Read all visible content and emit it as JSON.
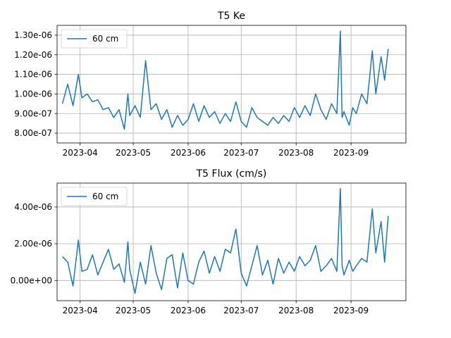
{
  "chart_data": [
    {
      "type": "line",
      "title": "T5 Ke",
      "xlabel": "",
      "ylabel": "",
      "grid": true,
      "legend_placement": "top-left",
      "x_ticks": [
        "2023-04",
        "2023-05",
        "2023-06",
        "2023-07",
        "2023-08",
        "2023-09"
      ],
      "y_ticks": [
        "8.00e-07",
        "9.00e-07",
        "1.00e-06",
        "1.10e-06",
        "1.20e-06",
        "1.30e-06"
      ],
      "y_tick_values": [
        8e-07,
        9e-07,
        1e-06,
        1.1e-06,
        1.2e-06,
        1.3e-06
      ],
      "xlim": [
        "2023-03-19",
        "2023-10-02"
      ],
      "ylim": [
        7.5e-07,
        1.35e-06
      ],
      "series": [
        {
          "name": "60 cm",
          "color": "#1f77b4",
          "x": [
            "2023-03-22",
            "2023-03-25",
            "2023-03-28",
            "2023-03-31",
            "2023-04-02",
            "2023-04-05",
            "2023-04-08",
            "2023-04-11",
            "2023-04-14",
            "2023-04-17",
            "2023-04-20",
            "2023-04-23",
            "2023-04-26",
            "2023-04-28",
            "2023-04-29",
            "2023-05-02",
            "2023-05-05",
            "2023-05-08",
            "2023-05-11",
            "2023-05-14",
            "2023-05-17",
            "2023-05-20",
            "2023-05-23",
            "2023-05-26",
            "2023-05-29",
            "2023-06-01",
            "2023-06-04",
            "2023-06-07",
            "2023-06-10",
            "2023-06-13",
            "2023-06-16",
            "2023-06-19",
            "2023-06-22",
            "2023-06-25",
            "2023-06-28",
            "2023-07-01",
            "2023-07-04",
            "2023-07-07",
            "2023-07-10",
            "2023-07-13",
            "2023-07-16",
            "2023-07-19",
            "2023-07-22",
            "2023-07-25",
            "2023-07-28",
            "2023-07-31",
            "2023-08-03",
            "2023-08-06",
            "2023-08-09",
            "2023-08-12",
            "2023-08-15",
            "2023-08-18",
            "2023-08-21",
            "2023-08-24",
            "2023-08-26",
            "2023-08-27",
            "2023-08-28",
            "2023-08-31",
            "2023-09-02",
            "2023-09-04",
            "2023-09-07",
            "2023-09-10",
            "2023-09-13",
            "2023-09-15",
            "2023-09-18",
            "2023-09-20",
            "2023-09-22"
          ],
          "values": [
            9.5e-07,
            1.05e-06,
            9.4e-07,
            1.1e-06,
            9.8e-07,
            1e-06,
            9.6e-07,
            9.7e-07,
            9.2e-07,
            9.3e-07,
            8.8e-07,
            9.2e-07,
            8.2e-07,
            1e-06,
            8.9e-07,
            9.4e-07,
            8.8e-07,
            1.17e-06,
            9.2e-07,
            9.5e-07,
            8.7e-07,
            9.2e-07,
            8.3e-07,
            8.9e-07,
            8.4e-07,
            8.7e-07,
            9.5e-07,
            8.6e-07,
            9.4e-07,
            8.8e-07,
            9.1e-07,
            8.5e-07,
            9e-07,
            8.6e-07,
            9.6e-07,
            8.6e-07,
            8.3e-07,
            9.3e-07,
            8.8e-07,
            8.6e-07,
            8.4e-07,
            8.8e-07,
            8.5e-07,
            8.9e-07,
            8.6e-07,
            9.3e-07,
            8.8e-07,
            9.4e-07,
            8.9e-07,
            1e-06,
            9.2e-07,
            8.7e-07,
            9.5e-07,
            9e-07,
            1.32e-06,
            8.8e-07,
            9.1e-07,
            8.4e-07,
            9.3e-07,
            9e-07,
            1e-06,
            9.5e-07,
            1.22e-06,
            1e-06,
            1.19e-06,
            1.07e-06,
            1.23e-06
          ]
        }
      ]
    },
    {
      "type": "line",
      "title": "T5 Flux (cm/s)",
      "xlabel": "",
      "ylabel": "",
      "grid": true,
      "legend_placement": "top-left",
      "x_ticks": [
        "2023-04",
        "2023-05",
        "2023-06",
        "2023-07",
        "2023-08",
        "2023-09"
      ],
      "y_ticks": [
        "0.00e+00",
        "2.00e-06",
        "4.00e-06"
      ],
      "y_tick_values": [
        0.0,
        2e-06,
        4e-06
      ],
      "xlim": [
        "2023-03-19",
        "2023-10-02"
      ],
      "ylim": [
        -1.1e-06,
        5.3e-06
      ],
      "series": [
        {
          "name": "60 cm",
          "color": "#1f77b4",
          "x": [
            "2023-03-22",
            "2023-03-25",
            "2023-03-28",
            "2023-03-31",
            "2023-04-02",
            "2023-04-05",
            "2023-04-08",
            "2023-04-11",
            "2023-04-14",
            "2023-04-17",
            "2023-04-20",
            "2023-04-23",
            "2023-04-26",
            "2023-04-28",
            "2023-04-29",
            "2023-05-02",
            "2023-05-05",
            "2023-05-08",
            "2023-05-11",
            "2023-05-14",
            "2023-05-17",
            "2023-05-20",
            "2023-05-23",
            "2023-05-26",
            "2023-05-29",
            "2023-06-01",
            "2023-06-04",
            "2023-06-07",
            "2023-06-10",
            "2023-06-13",
            "2023-06-16",
            "2023-06-19",
            "2023-06-22",
            "2023-06-25",
            "2023-06-28",
            "2023-07-01",
            "2023-07-04",
            "2023-07-07",
            "2023-07-10",
            "2023-07-13",
            "2023-07-16",
            "2023-07-19",
            "2023-07-22",
            "2023-07-25",
            "2023-07-28",
            "2023-07-31",
            "2023-08-03",
            "2023-08-06",
            "2023-08-09",
            "2023-08-12",
            "2023-08-15",
            "2023-08-18",
            "2023-08-21",
            "2023-08-24",
            "2023-08-26",
            "2023-08-27",
            "2023-08-28",
            "2023-08-31",
            "2023-09-02",
            "2023-09-04",
            "2023-09-07",
            "2023-09-10",
            "2023-09-13",
            "2023-09-15",
            "2023-09-18",
            "2023-09-20",
            "2023-09-22"
          ],
          "values": [
            1.3e-06,
            1e-06,
            -3e-07,
            2.2e-06,
            5e-07,
            6e-07,
            1.4e-06,
            3e-07,
            1e-06,
            1.7e-06,
            6e-07,
            9e-07,
            -1e-07,
            2.1e-06,
            6e-07,
            -7e-07,
            1e-06,
            -2e-07,
            1.9e-06,
            4e-07,
            -5e-07,
            1.2e-06,
            1.4e-06,
            -4e-07,
            1.5e-06,
            0.0,
            -2e-07,
            1e-06,
            1.6e-06,
            4e-07,
            1.3e-06,
            5e-07,
            1.7e-06,
            1.5e-06,
            2.8e-06,
            4e-07,
            -3e-07,
            8e-07,
            1.9e-06,
            3e-07,
            1.1e-06,
            -2e-07,
            1.2e-06,
            4e-07,
            1e-06,
            5e-07,
            1.3e-06,
            8e-07,
            1.1e-06,
            1.9e-06,
            5e-07,
            8e-07,
            1.2e-06,
            5e-07,
            5e-06,
            8e-07,
            3e-07,
            1.1e-06,
            5e-07,
            8e-07,
            1.2e-06,
            1e-06,
            3.9e-06,
            1.5e-06,
            3.2e-06,
            1e-06,
            3.5e-06
          ]
        }
      ]
    }
  ]
}
